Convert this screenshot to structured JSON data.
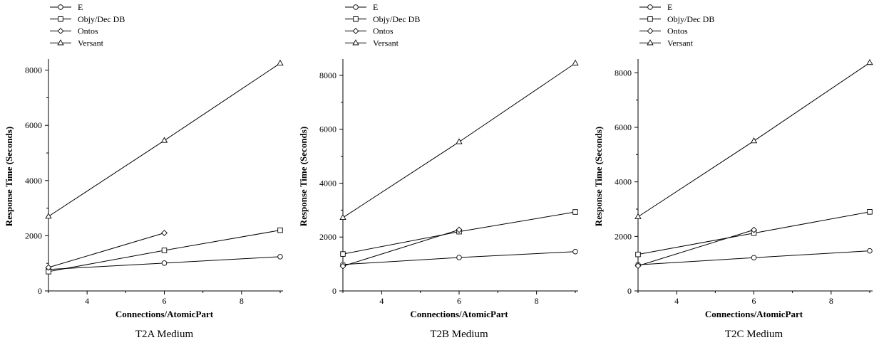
{
  "chart_data": [
    {
      "type": "line",
      "title": "T2A Medium",
      "xlabel": "Connections/AtomicPart",
      "ylabel": "Response Time (Seconds)",
      "xlim": [
        3,
        9
      ],
      "ylim": [
        0,
        8300
      ],
      "xticks": [
        4,
        6,
        8
      ],
      "yticks": [
        0,
        2000,
        4000,
        6000,
        8000
      ],
      "legend_position": "top-left",
      "series": [
        {
          "name": "E",
          "marker": "circle",
          "x": [
            3,
            6,
            9
          ],
          "values": [
            780,
            1010,
            1240
          ]
        },
        {
          "name": "Objy/Dec DB",
          "marker": "square",
          "x": [
            3,
            6,
            9
          ],
          "values": [
            700,
            1470,
            2200
          ]
        },
        {
          "name": "Ontos",
          "marker": "diamond",
          "x": [
            3,
            6
          ],
          "values": [
            850,
            2100
          ]
        },
        {
          "name": "Versant",
          "marker": "triangle",
          "x": [
            3,
            6,
            9
          ],
          "values": [
            2700,
            5450,
            8250
          ]
        }
      ]
    },
    {
      "type": "line",
      "title": "T2B Medium",
      "xlabel": "Connections/AtomicPart",
      "ylabel": "Response Time (Seconds)",
      "xlim": [
        3,
        9
      ],
      "ylim": [
        0,
        8500
      ],
      "xticks": [
        4,
        6,
        8
      ],
      "yticks": [
        0,
        2000,
        4000,
        6000,
        8000
      ],
      "legend_position": "top-left",
      "series": [
        {
          "name": "E",
          "marker": "circle",
          "x": [
            3,
            6,
            9
          ],
          "values": [
            980,
            1240,
            1460
          ]
        },
        {
          "name": "Objy/Dec DB",
          "marker": "square",
          "x": [
            3,
            6,
            9
          ],
          "values": [
            1370,
            2200,
            2930
          ]
        },
        {
          "name": "Ontos",
          "marker": "diamond",
          "x": [
            3,
            6
          ],
          "values": [
            920,
            2270
          ]
        },
        {
          "name": "Versant",
          "marker": "triangle",
          "x": [
            3,
            6,
            9
          ],
          "values": [
            2720,
            5530,
            8450
          ]
        }
      ]
    },
    {
      "type": "line",
      "title": "T2C Medium",
      "xlabel": "Connections/AtomicPart",
      "ylabel": "Response Time (Seconds)",
      "xlim": [
        3,
        9
      ],
      "ylim": [
        0,
        8400
      ],
      "xticks": [
        4,
        6,
        8
      ],
      "yticks": [
        0,
        2000,
        4000,
        6000,
        8000
      ],
      "legend_position": "top-left",
      "series": [
        {
          "name": "E",
          "marker": "circle",
          "x": [
            3,
            6,
            9
          ],
          "values": [
            960,
            1220,
            1470
          ]
        },
        {
          "name": "Objy/Dec DB",
          "marker": "square",
          "x": [
            3,
            6,
            9
          ],
          "values": [
            1340,
            2120,
            2900
          ]
        },
        {
          "name": "Ontos",
          "marker": "diamond",
          "x": [
            3,
            6
          ],
          "values": [
            920,
            2240
          ]
        },
        {
          "name": "Versant",
          "marker": "triangle",
          "x": [
            3,
            6,
            9
          ],
          "values": [
            2720,
            5500,
            8370
          ]
        }
      ]
    }
  ]
}
